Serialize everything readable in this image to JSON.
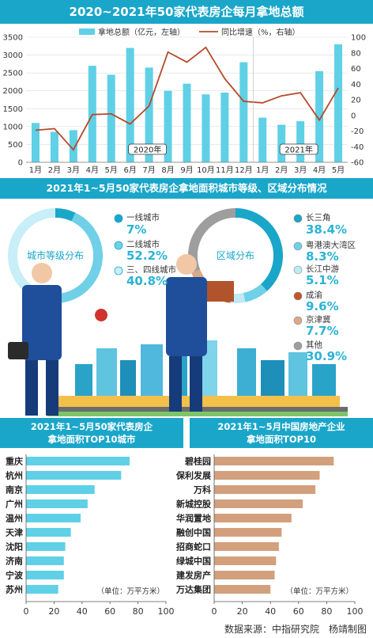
{
  "title": "2020~2021年50家代表房企每月拿地总额",
  "chart_data": [
    {
      "type": "bar+line",
      "title": "2020~2021年50家代表房企每月拿地总额",
      "categories": [
        "1月",
        "2月",
        "3月",
        "4月",
        "5月",
        "6月",
        "7月",
        "8月",
        "9月",
        "10月",
        "11月",
        "12月",
        "1月",
        "2月",
        "3月",
        "4月",
        "5月"
      ],
      "year_labels": [
        {
          "label": "2020年",
          "at_index": 6
        },
        {
          "label": "2021年",
          "at_index": 14
        }
      ],
      "series": [
        {
          "name": "拿地总额（亿元，左轴）",
          "type": "bar",
          "axis": "left",
          "values": [
            1100,
            850,
            900,
            2700,
            2450,
            3200,
            2650,
            2000,
            2200,
            1900,
            1950,
            2800,
            1250,
            1050,
            1150,
            2550,
            3300
          ]
        },
        {
          "name": "同比增速（%，右轴）",
          "type": "line",
          "axis": "right",
          "values": [
            -19,
            -17,
            -44,
            1,
            2,
            -11,
            12,
            81,
            68,
            87,
            47,
            18,
            16,
            25,
            29,
            -6,
            35
          ]
        }
      ],
      "y_left": {
        "min": 0,
        "max": 3500,
        "ticks": [
          0,
          500,
          1000,
          1500,
          2000,
          2500,
          3000,
          3500
        ]
      },
      "y_right": {
        "min": -60,
        "max": 100,
        "ticks": [
          -60,
          -40,
          -20,
          0,
          20,
          40,
          60,
          80,
          100
        ]
      },
      "legend": [
        "拿地总额（亿元，左轴）",
        "同比增速（%，右轴）"
      ]
    },
    {
      "type": "pie",
      "center_label": "城市等级分布",
      "slices": [
        {
          "label": "一线城市",
          "value": 7,
          "display": "7%",
          "color": "#1aa6c9"
        },
        {
          "label": "二线城市",
          "value": 52.2,
          "display": "52.2%",
          "color": "#6fd0e8"
        },
        {
          "label": "三、四线城市",
          "value": 40.8,
          "display": "40.8%",
          "color": "#c8eef8"
        }
      ]
    },
    {
      "type": "pie",
      "center_label": "区域分布",
      "slices": [
        {
          "label": "长三角",
          "value": 38.4,
          "display": "38.4%",
          "color": "#1aa6c9"
        },
        {
          "label": "粤港澳大湾区",
          "value": 8.3,
          "display": "8.3%",
          "color": "#6fd0e8"
        },
        {
          "label": "长江中游",
          "value": 5.1,
          "display": "5.1%",
          "color": "#bfe9f5"
        },
        {
          "label": "成渝",
          "value": 9.6,
          "display": "9.6%",
          "color": "#c2562a"
        },
        {
          "label": "京津冀",
          "value": 7.7,
          "display": "7.7%",
          "color": "#d9a98a"
        },
        {
          "label": "其他",
          "value": 30.9,
          "display": "30.9%",
          "color": "#9e9e9e"
        }
      ]
    },
    {
      "type": "bar-horizontal",
      "title": "2021年1~5月50家代表房企拿地面积TOP10城市",
      "categories": [
        "重庆",
        "杭州",
        "南京",
        "广州",
        "温州",
        "天津",
        "沈阳",
        "济南",
        "宁波",
        "苏州"
      ],
      "values": [
        74,
        68,
        49,
        44,
        39,
        32,
        28,
        27,
        27,
        23
      ],
      "unit": "（单位：万平方米）",
      "xlim": [
        0,
        100
      ],
      "ticks": [
        0,
        20,
        40,
        60,
        80,
        100
      ],
      "color": "#5fd0e6"
    },
    {
      "type": "bar-horizontal",
      "title": "2021年1~5月中国房地产企业拿地面积TOP10",
      "categories": [
        "碧桂园",
        "保利发展",
        "万科",
        "新城控股",
        "华润置地",
        "融创中国",
        "招商蛇口",
        "绿城中国",
        "建发房产",
        "万达集团"
      ],
      "values": [
        85,
        75,
        72,
        63,
        55,
        48,
        46,
        44,
        43,
        40
      ],
      "unit": "（单位：万平方米）",
      "xlim": [
        0,
        100
      ],
      "ticks": [
        0,
        20,
        40,
        60,
        80,
        100
      ],
      "color": "#d3a07e"
    }
  ],
  "section2_title": "2021年1~5月50家代表房企拿地面积城市等级、区域分布情况",
  "bottom_left_title_1": "2021年1~5月50家代表房企",
  "bottom_left_title_2": "拿地面积TOP10城市",
  "bottom_right_title_1": "2021年1~5月中国房地产企业",
  "bottom_right_title_2": "拿地面积TOP10",
  "source": "数据来源：中指研究院　杨靖制图",
  "colors": {
    "accent": "#1aa6c9",
    "bar": "#5fd0e6",
    "line": "#b5492a",
    "brown": "#d3a07e"
  }
}
